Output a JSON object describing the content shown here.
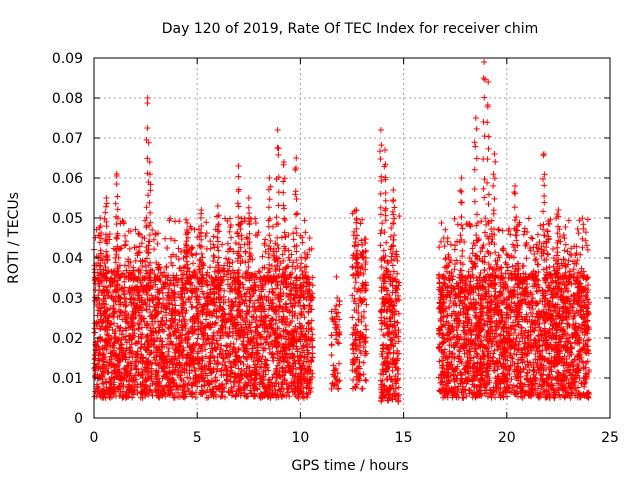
{
  "chart_data": {
    "type": "scatter",
    "title": "Day 120 of 2019, Rate Of TEC Index for receiver chim",
    "xlabel": "GPS time / hours",
    "ylabel": "ROTI / TECUs",
    "xlim": [
      0,
      25
    ],
    "ylim": [
      0,
      0.09
    ],
    "x_ticks": [
      "0",
      "5",
      "10",
      "15",
      "20",
      "25"
    ],
    "y_ticks": [
      "0",
      "0.01",
      "0.02",
      "0.03",
      "0.04",
      "0.05",
      "0.06",
      "0.07",
      "0.08",
      "0.09"
    ],
    "grid": true,
    "marker": "plus",
    "color": "#ff0000",
    "density_profile": [
      {
        "x_range": [
          0.0,
          10.6
        ],
        "y_min": 0.005,
        "y_max": 0.035,
        "peak": 0.05,
        "samples": 3400
      },
      {
        "x_range": [
          11.5,
          11.9
        ],
        "y_min": 0.007,
        "y_max": 0.03,
        "peak": 0.046,
        "samples": 60
      },
      {
        "x_range": [
          12.5,
          13.2
        ],
        "y_min": 0.007,
        "y_max": 0.04,
        "peak": 0.052,
        "samples": 180
      },
      {
        "x_range": [
          13.9,
          14.8
        ],
        "y_min": 0.004,
        "y_max": 0.035,
        "peak": 0.057,
        "samples": 300
      },
      {
        "x_range": [
          16.7,
          24.0
        ],
        "y_min": 0.005,
        "y_max": 0.035,
        "peak": 0.05,
        "samples": 2600
      }
    ],
    "spikes": [
      {
        "x": 0.3,
        "y_top": 0.05
      },
      {
        "x": 0.6,
        "y_top": 0.055
      },
      {
        "x": 1.1,
        "y_top": 0.061
      },
      {
        "x": 2.6,
        "y_top": 0.08
      },
      {
        "x": 2.7,
        "y_top": 0.064
      },
      {
        "x": 4.5,
        "y_top": 0.047
      },
      {
        "x": 5.2,
        "y_top": 0.052
      },
      {
        "x": 6.0,
        "y_top": 0.053
      },
      {
        "x": 7.0,
        "y_top": 0.063
      },
      {
        "x": 7.5,
        "y_top": 0.055
      },
      {
        "x": 8.5,
        "y_top": 0.06
      },
      {
        "x": 8.9,
        "y_top": 0.072
      },
      {
        "x": 9.2,
        "y_top": 0.064
      },
      {
        "x": 9.8,
        "y_top": 0.065
      },
      {
        "x": 12.7,
        "y_top": 0.052
      },
      {
        "x": 13.9,
        "y_top": 0.072
      },
      {
        "x": 14.1,
        "y_top": 0.067
      },
      {
        "x": 14.5,
        "y_top": 0.057
      },
      {
        "x": 17.8,
        "y_top": 0.06
      },
      {
        "x": 18.5,
        "y_top": 0.075
      },
      {
        "x": 18.9,
        "y_top": 0.089
      },
      {
        "x": 19.1,
        "y_top": 0.084
      },
      {
        "x": 19.4,
        "y_top": 0.066
      },
      {
        "x": 20.4,
        "y_top": 0.058
      },
      {
        "x": 21.8,
        "y_top": 0.066
      },
      {
        "x": 22.5,
        "y_top": 0.052
      }
    ]
  }
}
